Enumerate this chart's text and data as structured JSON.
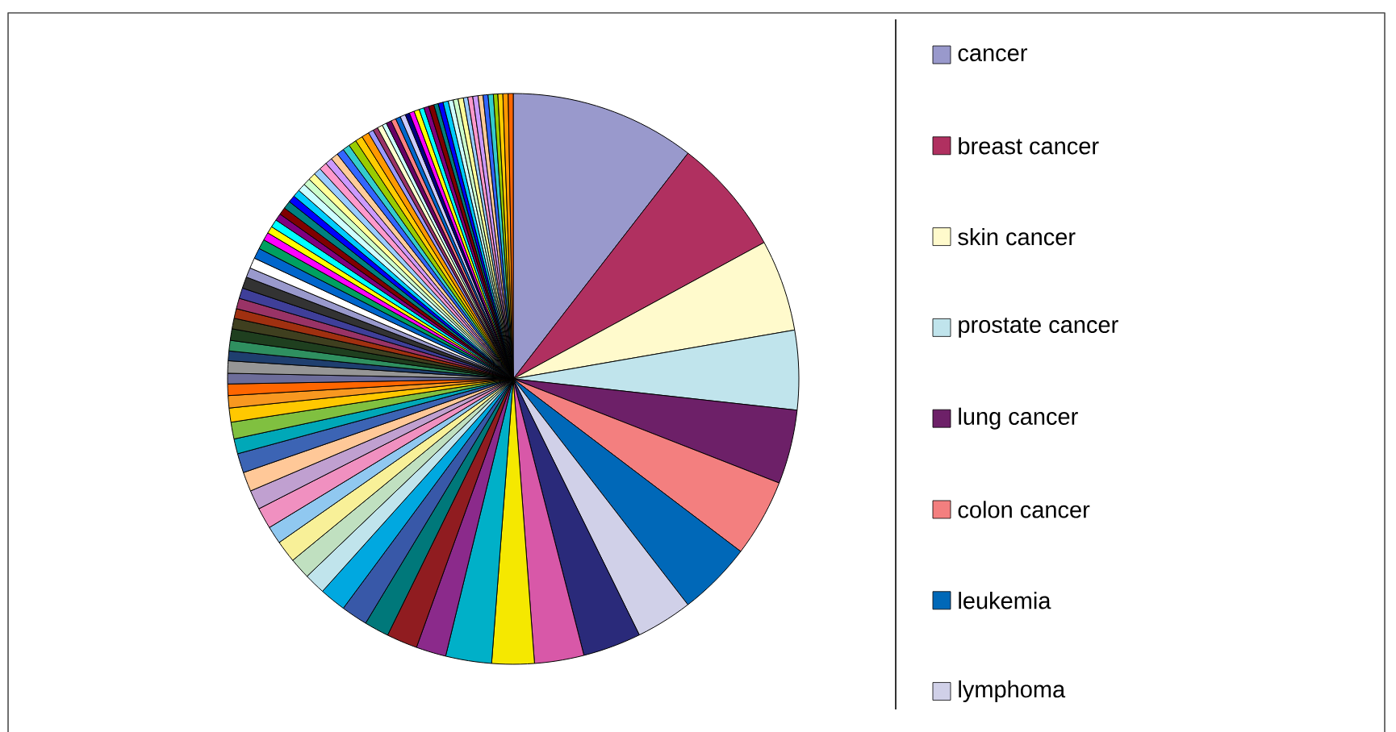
{
  "chart_data": {
    "type": "pie",
    "legend": "right",
    "categories": [
      "cancer",
      "breast cancer",
      "skin cancer",
      "prostate cancer",
      "lung cancer",
      "colon cancer",
      "leukemia",
      "lymphoma",
      null,
      null,
      null,
      null,
      null,
      null,
      null,
      null,
      null,
      null,
      null,
      null,
      null,
      null,
      null,
      null,
      null,
      null,
      null,
      null,
      null,
      null,
      null,
      null,
      null,
      null,
      null,
      null,
      null,
      null,
      null,
      null,
      null,
      null,
      null,
      null,
      null,
      null,
      null,
      null,
      null,
      null,
      null,
      null,
      null,
      null,
      null,
      null,
      null,
      null,
      null,
      null,
      null,
      null,
      null,
      null,
      null,
      null,
      null,
      null,
      null,
      null,
      null,
      null,
      null,
      null,
      null,
      null,
      null,
      null,
      null,
      null,
      null,
      null,
      null,
      null,
      null,
      null,
      null,
      null,
      null,
      null,
      null,
      null,
      null,
      null
    ],
    "values": [
      10.5,
      6.6,
      5.2,
      4.5,
      4.2,
      4.4,
      4.2,
      3.2,
      3.3,
      2.8,
      2.4,
      2.6,
      1.7,
      1.75,
      1.4,
      1.5,
      1.5,
      1.2,
      1.2,
      1.25,
      1.0,
      1.2,
      1.1,
      1.1,
      1.1,
      0.85,
      0.95,
      0.8,
      0.7,
      0.65,
      0.6,
      0.7,
      0.55,
      0.6,
      0.65,
      0.6,
      0.55,
      0.6,
      0.6,
      0.65,
      0.55,
      0.6,
      0.6,
      0.55,
      0.45,
      0.4,
      0.45,
      0.4,
      0.42,
      0.45,
      0.4,
      0.42,
      0.45,
      0.4,
      0.42,
      0.42,
      0.45,
      0.4,
      0.42,
      0.42,
      0.4,
      0.45,
      0.42,
      0.42,
      0.3,
      0.28,
      0.3,
      0.25,
      0.3,
      0.28,
      0.28,
      0.3,
      0.25,
      0.28,
      0.3,
      0.28,
      0.28,
      0.3,
      0.25,
      0.28,
      0.3,
      0.28,
      0.28,
      0.3,
      0.25,
      0.28,
      0.3,
      0.28,
      0.28,
      0.3,
      0.25,
      0.28,
      0.3,
      0.28
    ],
    "colors": [
      "#9999cc",
      "#b03060",
      "#fffacc",
      "#c0e4ec",
      "#6d2068",
      "#f37f7f",
      "#0068b8",
      "#d0d0e8",
      "#2a2a7a",
      "#d858a8",
      "#f5e800",
      "#00b0c8",
      "#8b2a8b",
      "#901c20",
      "#00787a",
      "#3858a8",
      "#00a8e0",
      "#c0e4ec",
      "#c0e0c0",
      "#f8f098",
      "#90c8f0",
      "#f090c0",
      "#c0a0d0",
      "#ffc898",
      "#3c64b4",
      "#00a8b8",
      "#80c040",
      "#ffc800",
      "#f89820",
      "#ff6600",
      "#6d6d9a",
      "#969696",
      "#1f3f6f",
      "#2f9060",
      "#1f3f1f",
      "#3f3f1f",
      "#a03010",
      "#993366",
      "#3f3f99",
      "#333333",
      "#9999cc",
      "#ffffff",
      "#0066cc",
      "#00a060",
      "#ff00ff",
      "#ffff00",
      "#00ffff",
      "#800080",
      "#800000",
      "#008080",
      "#0000ff",
      "#00ccff",
      "#ccffff",
      "#ccffcc",
      "#ffff99",
      "#99ccff",
      "#ff99cc",
      "#cc99ff",
      "#ffcc99",
      "#3366ff",
      "#33cccc",
      "#99cc00",
      "#ffcc00",
      "#ff9900",
      "#9999ff",
      "#993366",
      "#ffffcc",
      "#ccffff",
      "#660066",
      "#ff8080",
      "#0066cc",
      "#ccccff",
      "#000080",
      "#ff00ff",
      "#ffff00",
      "#00ffff",
      "#800080",
      "#800000",
      "#008080",
      "#0000ff",
      "#00ccff",
      "#ccffff",
      "#ccffcc",
      "#ffff99",
      "#99ccff",
      "#ff99cc",
      "#cc99ff",
      "#ffcc99",
      "#3366ff",
      "#33cccc",
      "#99cc00",
      "#ffcc00",
      "#ff9900",
      "#ff6600"
    ]
  }
}
